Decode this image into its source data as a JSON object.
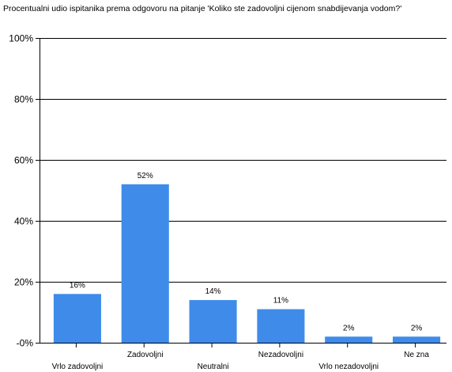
{
  "chart_data": {
    "type": "bar",
    "title": "Procentualni udio ispitanika prema odgovoru na pitanje 'Koliko ste zadovoljni cijenom snabdijevanja vodom?'",
    "xlabel": "",
    "ylabel": "",
    "categories": [
      "Vrlo zadovoljni",
      "Zadovoljni",
      "Neutralni",
      "Nezadovoljni",
      "Vrlo nezadovoljni",
      "Ne zna"
    ],
    "values": [
      16,
      52,
      14,
      11,
      2,
      2
    ],
    "data_labels": [
      "16%",
      "52%",
      "14%",
      "11%",
      "2%",
      "2%"
    ],
    "ylim": [
      0,
      100
    ],
    "y_ticks": [
      0,
      20,
      40,
      60,
      80,
      100
    ],
    "y_tick_labels": [
      "-0%",
      "20%",
      "40%",
      "60%",
      "80%",
      "100%"
    ],
    "grid": true,
    "legend": "none",
    "bar_color": "#3F8BEA",
    "axis_color": "#000000",
    "grid_color": "#000000"
  }
}
